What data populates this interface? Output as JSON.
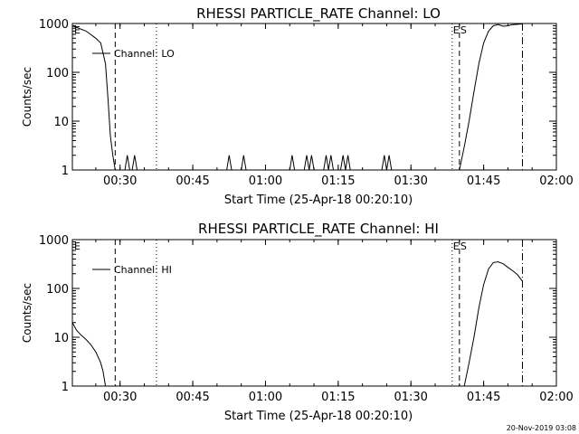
{
  "footer": {
    "timestamp": "20-Nov-2019 03:08"
  },
  "chart_data": [
    {
      "type": "line",
      "title": "RHESSI PARTICLE_RATE Channel: LO",
      "xlabel": "Start Time (25-Apr-18 00:20:10)",
      "ylabel": "Counts/sec",
      "y_scale": "log",
      "ylim": [
        1,
        1000
      ],
      "xlim": [
        "00:20:10",
        "02:00:00"
      ],
      "x_ticks": [
        "00:30",
        "00:45",
        "01:00",
        "01:15",
        "01:30",
        "01:45",
        "02:00"
      ],
      "y_ticks": [
        "1",
        "10",
        "100",
        "1000"
      ],
      "legend": {
        "label": "Channel: LO",
        "placement": "top-left"
      },
      "markers": [
        {
          "label": "E",
          "time": "00:20:10",
          "style": "none"
        },
        {
          "time": "00:29:00",
          "style": "dashed"
        },
        {
          "time": "00:37:30",
          "style": "dotted"
        },
        {
          "label": "E",
          "time": "01:38:30",
          "style": "dotted"
        },
        {
          "label": "S",
          "time": "01:40:00",
          "style": "dashed"
        },
        {
          "time": "01:53:00",
          "style": "dash-dot"
        }
      ],
      "series": [
        {
          "name": "Channel: LO",
          "x": [
            "00:20:10",
            "00:23:00",
            "00:25:00",
            "00:26:00",
            "00:27:00",
            "00:27:30",
            "00:28:00",
            "00:28:30",
            "00:29:00",
            "00:31:00",
            "00:31:30",
            "00:32:00",
            "00:32:30",
            "00:33:00",
            "00:33:30",
            "00:52:00",
            "00:52:30",
            "00:53:00",
            "00:55:00",
            "00:55:30",
            "00:56:00",
            "01:05:00",
            "01:05:30",
            "01:06:00",
            "01:08:00",
            "01:08:30",
            "01:09:00",
            "01:09:30",
            "01:10:00",
            "01:12:00",
            "01:12:30",
            "01:13:00",
            "01:13:30",
            "01:14:00",
            "01:15:30",
            "01:16:00",
            "01:16:30",
            "01:17:00",
            "01:17:30",
            "01:24:00",
            "01:24:30",
            "01:25:00",
            "01:25:30",
            "01:26:00",
            "01:40:00",
            "01:41:00",
            "01:42:00",
            "01:43:00",
            "01:44:00",
            "01:45:00",
            "01:46:00",
            "01:47:00",
            "01:48:00",
            "01:49:00",
            "01:50:00",
            "01:51:00",
            "01:53:00"
          ],
          "values": [
            900,
            700,
            500,
            400,
            150,
            30,
            5,
            2,
            1,
            1,
            2,
            1,
            1,
            2,
            1,
            1,
            2,
            1,
            1,
            2,
            1,
            1,
            2,
            1,
            1,
            2,
            1,
            2,
            1,
            1,
            2,
            1,
            2,
            1,
            1,
            2,
            1,
            2,
            1,
            1,
            2,
            1,
            2,
            1,
            1,
            3,
            10,
            40,
            150,
            400,
            700,
            900,
            950,
            880,
            900,
            950,
            980
          ]
        }
      ]
    },
    {
      "type": "line",
      "title": "RHESSI PARTICLE_RATE Channel: HI",
      "xlabel": "Start Time (25-Apr-18 00:20:10)",
      "ylabel": "Counts/sec",
      "y_scale": "log",
      "ylim": [
        1,
        1000
      ],
      "xlim": [
        "00:20:10",
        "02:00:00"
      ],
      "x_ticks": [
        "00:30",
        "00:45",
        "01:00",
        "01:15",
        "01:30",
        "01:45",
        "02:00"
      ],
      "y_ticks": [
        "1",
        "10",
        "100",
        "1000"
      ],
      "legend": {
        "label": "Channel: HI",
        "placement": "top-left"
      },
      "markers": [
        {
          "label": "E",
          "time": "00:20:10",
          "style": "none"
        },
        {
          "time": "00:29:00",
          "style": "dashed"
        },
        {
          "time": "00:37:30",
          "style": "dotted"
        },
        {
          "label": "E",
          "time": "01:38:30",
          "style": "dotted"
        },
        {
          "label": "S",
          "time": "01:40:00",
          "style": "dashed"
        },
        {
          "time": "01:53:00",
          "style": "dash-dot"
        }
      ],
      "series": [
        {
          "name": "Channel: HI",
          "x": [
            "00:20:10",
            "00:21:00",
            "00:22:00",
            "00:23:00",
            "00:24:00",
            "00:25:00",
            "00:26:00",
            "00:26:30",
            "00:27:00",
            "01:41:00",
            "01:42:00",
            "01:43:00",
            "01:44:00",
            "01:45:00",
            "01:46:00",
            "01:47:00",
            "01:48:00",
            "01:49:00",
            "01:50:00",
            "01:51:00",
            "01:52:00",
            "01:53:00"
          ],
          "values": [
            20,
            14,
            11,
            9,
            7,
            5,
            3,
            2,
            1,
            1,
            3,
            10,
            40,
            120,
            250,
            340,
            350,
            320,
            270,
            230,
            190,
            140
          ]
        }
      ]
    }
  ]
}
